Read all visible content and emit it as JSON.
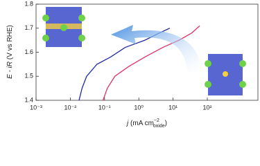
{
  "chart_data": {
    "type": "line",
    "ylabel": {
      "var": "E - iR",
      "text": " (V vs RHE)"
    },
    "xlabel": {
      "var": "j",
      "text": " (mA cm",
      "sup": "−2",
      "sub": "oxide",
      "close": ")"
    },
    "xscale": "log",
    "xlim": [
      0.001,
      3000
    ],
    "xticks": [
      {
        "value": 0.001,
        "label": "10⁻³"
      },
      {
        "value": 0.01,
        "label": "10⁻²"
      },
      {
        "value": 0.1,
        "label": "10⁻¹"
      },
      {
        "value": 1,
        "label": "10⁰"
      },
      {
        "value": 10,
        "label": "10¹"
      },
      {
        "value": 100,
        "label": "10²"
      }
    ],
    "ylim": [
      1.4,
      1.8
    ],
    "yticks": [
      1.4,
      1.5,
      1.6,
      1.7,
      1.8
    ],
    "series": [
      {
        "color": "#1f2aa6",
        "x": [
          0.018,
          0.022,
          0.03,
          0.06,
          0.15,
          0.4,
          1.5,
          4,
          8
        ],
        "values": [
          1.4,
          1.45,
          1.5,
          1.55,
          1.58,
          1.62,
          1.65,
          1.68,
          1.7
        ]
      },
      {
        "color": "#e0306a",
        "x": [
          0.09,
          0.12,
          0.2,
          0.5,
          1.5,
          5,
          15,
          35,
          60
        ],
        "values": [
          1.4,
          1.45,
          1.5,
          1.54,
          1.58,
          1.62,
          1.65,
          1.68,
          1.71
        ]
      }
    ]
  }
}
